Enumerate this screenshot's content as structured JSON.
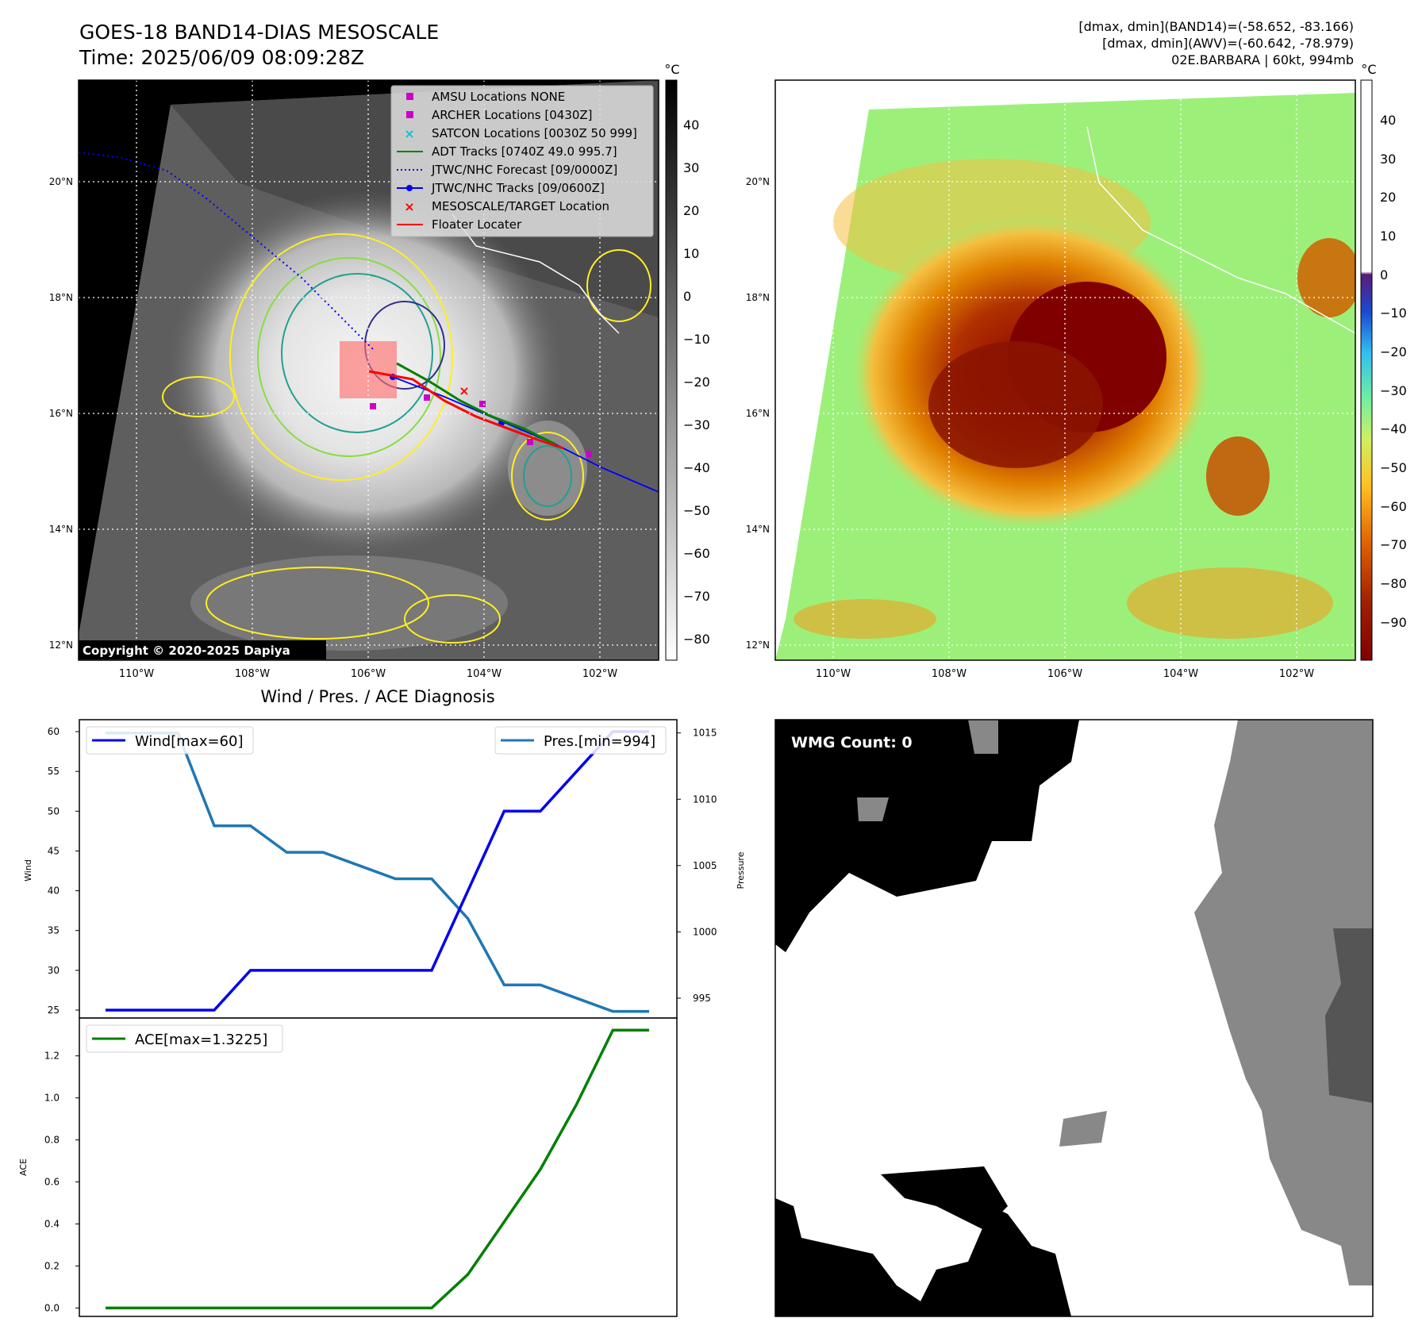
{
  "header": {
    "title_line1": "GOES-18 BAND14-DIAS MESOSCALE",
    "title_line2": "Time: 2025/06/09 08:09:28Z",
    "info_line1": "[dmax, dmin](BAND14)=(-58.652, -83.166)",
    "info_line2": "[dmax, dmin](AWV)=(-60.642, -78.979)",
    "info_line3": "02E.BARBARA | 60kt, 994mb"
  },
  "colors": {
    "wind": "#0000ee",
    "pres": "#1f77b4",
    "ace": "#008000",
    "adt": "#008000",
    "jtwc": "#0000ff",
    "floater": "#ff0000",
    "archer": "#cc00cc",
    "satcon": "#17becf"
  },
  "map_axes": {
    "lat_labels": [
      "20°N",
      "18°N",
      "16°N",
      "14°N",
      "12°N"
    ],
    "lon_labels": [
      "110°W",
      "108°W",
      "106°W",
      "104°W",
      "102°W"
    ]
  },
  "map_ir": {
    "colorbar_unit": "°C",
    "colorbar_ticks": [
      "40",
      "30",
      "20",
      "10",
      "0",
      "−10",
      "−20",
      "−30",
      "−40",
      "−50",
      "−60",
      "−70",
      "−80"
    ],
    "copyright": "Copyright © 2020-2025 Dapiya",
    "legend": [
      {
        "icon": "square-marker-icon",
        "label": "AMSU Locations NONE"
      },
      {
        "icon": "square-marker-icon",
        "label": "ARCHER Locations [0430Z]"
      },
      {
        "icon": "x-marker-icon",
        "label": "SATCON Locations [0030Z 50 999]"
      },
      {
        "icon": "solid-line-icon",
        "label": "ADT Tracks [0740Z 49.0 995.7]"
      },
      {
        "icon": "dotted-line-icon",
        "label": "JTWC/NHC Forecast [09/0000Z]"
      },
      {
        "icon": "line-dot-icon",
        "label": "JTWC/NHC Tracks [09/0600Z]"
      },
      {
        "icon": "x-marker-icon",
        "label": "MESOSCALE/TARGET Location"
      },
      {
        "icon": "solid-line-icon",
        "label": "Floater Locater"
      }
    ]
  },
  "map_awv": {
    "colorbar_unit": "°C",
    "colorbar_ticks": [
      "40",
      "30",
      "20",
      "10",
      "0",
      "−10",
      "−20",
      "−30",
      "−40",
      "−50",
      "−60",
      "−70",
      "−80",
      "−90"
    ]
  },
  "diagnosis": {
    "title": "Wind / Pres. / ACE Diagnosis",
    "wind_axis_label": "Wind",
    "pres_axis_label": "Pressure",
    "ace_axis_label": "ACE",
    "wind_legend": "Wind[max=60]",
    "pres_legend": "Pres.[min=994]",
    "ace_legend": "ACE[max=1.3225]",
    "wind_ticks": [
      "60",
      "55",
      "50",
      "45",
      "40",
      "35",
      "30",
      "25"
    ],
    "pres_ticks": [
      "1015",
      "1010",
      "1005",
      "1000",
      "995"
    ],
    "ace_ticks": [
      "1.2",
      "1.0",
      "0.8",
      "0.6",
      "0.4",
      "0.2",
      "0.0"
    ]
  },
  "wmg": {
    "label": "WMG Count: 0"
  },
  "chart_data": [
    {
      "type": "line",
      "title": "Wind / Pres. / ACE Diagnosis",
      "x": [
        0,
        1,
        2,
        3,
        4,
        5,
        6,
        7,
        8,
        9,
        10,
        11,
        12,
        13,
        14,
        15
      ],
      "series": [
        {
          "name": "Wind[max=60]",
          "axis": "left",
          "values": [
            25,
            25,
            25,
            25,
            30,
            30,
            30,
            30,
            30,
            30,
            40,
            50,
            50,
            55,
            60,
            60
          ]
        },
        {
          "name": "Pres.[min=994]",
          "axis": "right",
          "values": [
            1015,
            1015,
            1015,
            1008,
            1008,
            1006,
            1006,
            1005,
            1004,
            1004,
            1001,
            996,
            996,
            995,
            994,
            994
          ]
        }
      ],
      "ylabel": "Wind",
      "ylabel_right": "Pressure",
      "ylim": [
        24,
        61.5
      ],
      "ylim_right": [
        993.5,
        1016
      ]
    },
    {
      "type": "line",
      "series": [
        {
          "name": "ACE[max=1.3225]",
          "values": [
            0,
            0,
            0,
            0,
            0,
            0,
            0,
            0,
            0,
            0,
            0.16,
            0.41,
            0.66,
            0.97,
            1.3225,
            1.3225
          ]
        }
      ],
      "ylabel": "ACE",
      "ylim": [
        -0.04,
        1.38
      ]
    }
  ]
}
